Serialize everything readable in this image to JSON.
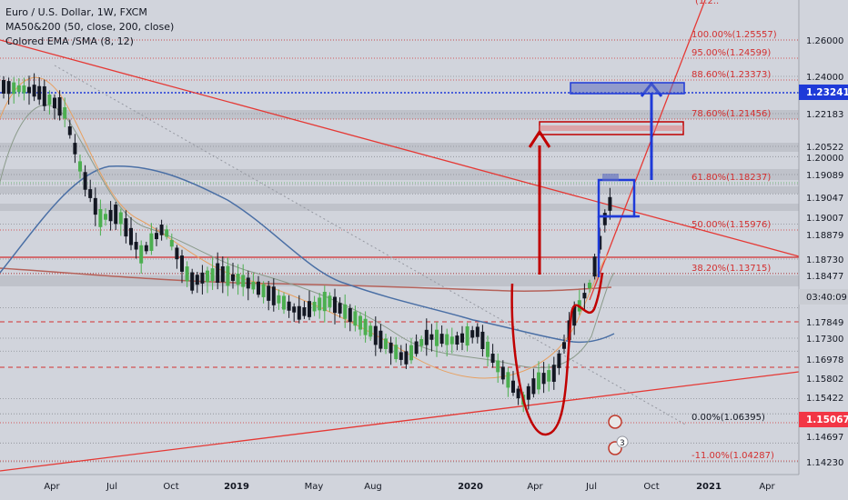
{
  "legend": {
    "symbol": "Euro / U.S. Dollar, 1W, FXCM",
    "ma": "MA50&200 (50, close, 200, close)",
    "ema": "Colored EMA /SMA (8, 12)"
  },
  "colors": {
    "background": "#d1d4dc",
    "bull": "#4caf50",
    "bear": "#131722",
    "ma50": "#4a6fa5",
    "ma200": "#b5625a",
    "fib": "#d32f2f",
    "blue_annot": "#1e3ad8",
    "red_annot": "#c00000",
    "current_price_bg": "#1e3ad8",
    "neg_price_bg": "#f23645"
  },
  "chart_data": {
    "type": "candlestick",
    "interval": "1W",
    "ylim": [
      1.14,
      1.278
    ],
    "price_axis_labels": [
      "1.26000",
      "1.24000",
      "1.22183",
      "1.20522",
      "1.20000",
      "1.19089",
      "1.19047",
      "1.19007",
      "1.18879",
      "1.18730",
      "1.18477",
      "1.17849",
      "1.17300",
      "1.16978",
      "1.15802",
      "1.15422",
      "1.14697",
      "1.14230"
    ],
    "price_axis_values": [
      1.26,
      1.24,
      1.22183,
      1.20522,
      1.2,
      1.19089,
      1.19047,
      1.19007,
      1.18879,
      1.1873,
      1.18477,
      1.17849,
      1.173,
      1.16978,
      1.15802,
      1.15422,
      1.14697,
      1.1423
    ],
    "current_price": {
      "label": "1.23241",
      "value": 1.23241
    },
    "timer": "03:40:09",
    "lower_tag": {
      "label": "1.15067",
      "value": 1.15067
    },
    "time_labels": [
      "Apr",
      "Jul",
      "Oct",
      "2019",
      "May",
      "Aug",
      "2020",
      "Apr",
      "Jul",
      "Oct",
      "2021",
      "Apr"
    ],
    "fib_levels": [
      {
        "label": "100.00%(1.25557)",
        "value": 1.25557
      },
      {
        "label": "95.00%(1.24599)",
        "value": 1.24599
      },
      {
        "label": "88.60%(1.23373)",
        "value": 1.23373
      },
      {
        "label": "78.60%(1.21456)",
        "value": 1.21456
      },
      {
        "label": "61.80%(1.18237)",
        "value": 1.18237
      },
      {
        "label": "50.00%(1.15976)",
        "value": 1.15976
      },
      {
        "label": "38.20%(1.13715)",
        "value": 1.13715
      },
      {
        "label": "0.00%(1.06395)",
        "value": 1.06395
      },
      {
        "label": "-11.00%(1.04287)",
        "value": 1.04287
      }
    ],
    "fib_top_partial": "(1.2..",
    "event_badge": "3"
  }
}
